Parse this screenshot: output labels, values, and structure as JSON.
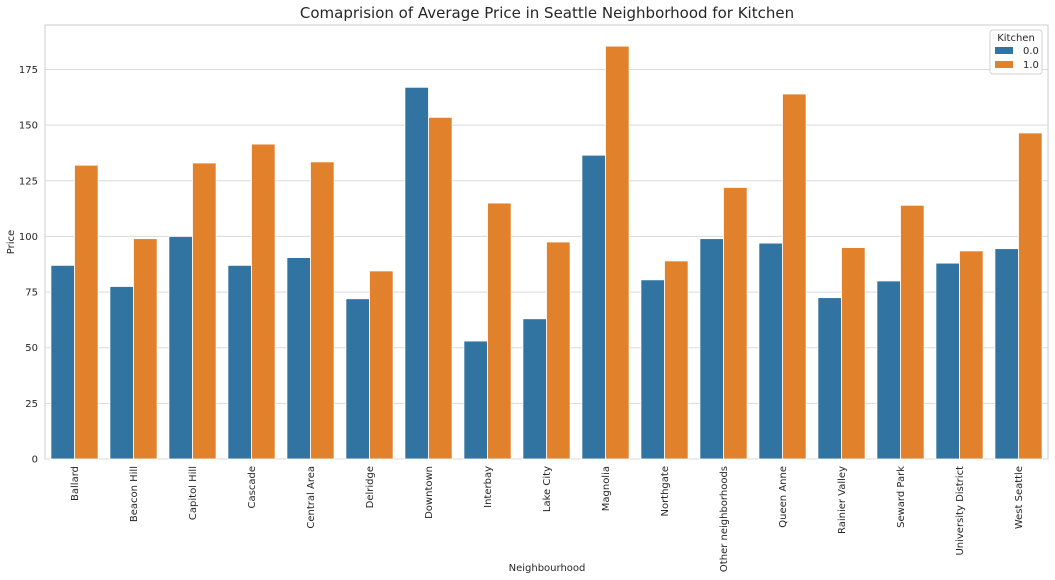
{
  "chart_data": {
    "type": "bar",
    "title": "Comaprision of Average Price in Seattle Neighborhood for Kitchen",
    "xlabel": "Neighbourhood",
    "ylabel": "Price",
    "ylim": [
      0,
      195
    ],
    "yticks": [
      0,
      25,
      50,
      75,
      100,
      125,
      150,
      175
    ],
    "grid": true,
    "legend_position": "top-right",
    "legend_title": "Kitchen",
    "categories": [
      "Ballard",
      "Beacon Hill",
      "Capitol Hill",
      "Cascade",
      "Central Area",
      "Delridge",
      "Downtown",
      "Interbay",
      "Lake City",
      "Magnolia",
      "Northgate",
      "Other neighborhoods",
      "Queen Anne",
      "Rainier Valley",
      "Seward Park",
      "University District",
      "West Seattle"
    ],
    "series": [
      {
        "name": "0.0",
        "color": "#3274a1",
        "values": [
          87,
          77.5,
          100,
          87,
          90.5,
          72,
          167,
          53,
          63,
          136.5,
          80.5,
          99,
          97,
          72.5,
          80,
          88,
          94.5
        ]
      },
      {
        "name": "1.0",
        "color": "#e1812c",
        "values": [
          132,
          99,
          133,
          141.5,
          133.5,
          84.5,
          153.5,
          115,
          97.5,
          185.5,
          89,
          122,
          164,
          95,
          114,
          93.5,
          146.5
        ]
      }
    ]
  }
}
